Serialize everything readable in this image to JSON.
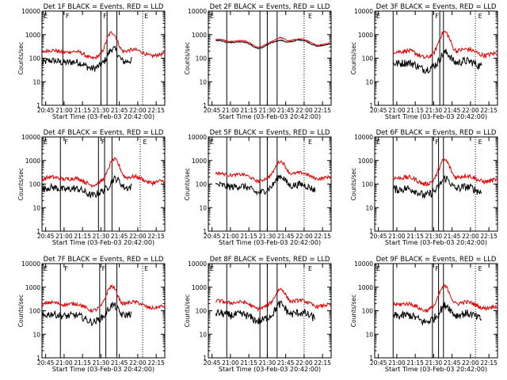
{
  "chart_data": {
    "type": "line",
    "layout": "3x3 grid",
    "ylabel": "Counts/sec",
    "xlabel": "Start Time (03-Feb-03 20:42:00)",
    "x_tick_labels": [
      "20:45",
      "21:00",
      "21:15",
      "21:30",
      "21:45",
      "22:00",
      "22:15"
    ],
    "y_tick_labels": [
      "1",
      "10",
      "100",
      "1000",
      "10000"
    ],
    "ylim": [
      1,
      10000
    ],
    "xlim_minutes_after_2042": [
      0,
      100
    ],
    "series_names": {
      "black": "Events",
      "red": "LLD"
    },
    "colors": {
      "black": "#000000",
      "red": "#e00000"
    },
    "panels": [
      {
        "title": "Det 1F BLACK = Events, RED = LLD",
        "gap_end": 13,
        "vlines": [
          17,
          48,
          53,
          61
        ],
        "dotted": [
          82
        ],
        "flags": [
          {
            "t": 0,
            "label": "E"
          },
          {
            "t": 18,
            "label": "F"
          },
          {
            "t": 48.5,
            "label": "F"
          },
          {
            "t": 82,
            "label": "E"
          }
        ],
        "red": {
          "base": 165,
          "flare": 7,
          "peak_t": 57,
          "wiggle": 0.18,
          "start": 0
        },
        "black": {
          "base": 60,
          "flare": 4,
          "peak_t": 58,
          "wiggle": 0.35,
          "start": 0,
          "tstart": 0,
          "tend": 73
        }
      },
      {
        "title": "Det 2F BLACK = Events, RED = LLD",
        "gap_end": 0,
        "vlines": [
          15,
          42,
          48,
          56
        ],
        "dotted": [
          78
        ],
        "flags": [
          {
            "t": 0,
            "label": "E"
          },
          {
            "t": 80,
            "label": "E"
          }
        ],
        "red": {
          "base": 480,
          "flare": 1.5,
          "peak_t": 59,
          "wiggle": 0.05,
          "start": 6
        },
        "black": {
          "base": 430,
          "flare": 1.3,
          "peak_t": 59,
          "wiggle": 0.05,
          "start": 6,
          "tstart": 6,
          "tend": 100
        }
      },
      {
        "title": "Det 3F BLACK = Events, RED = LLD",
        "gap_end": 0,
        "vlines": [
          15,
          47,
          53,
          56
        ],
        "dotted": [
          82
        ],
        "flags": [
          {
            "t": 0,
            "label": "E"
          },
          {
            "t": 48,
            "label": "F"
          },
          {
            "t": 83,
            "label": "E"
          }
        ],
        "red": {
          "base": 175,
          "flare": 7,
          "peak_t": 57,
          "wiggle": 0.22,
          "start": 15
        },
        "black": {
          "base": 55,
          "flare": 3,
          "peak_t": 58,
          "wiggle": 0.4,
          "start": 15,
          "tstart": 15,
          "tend": 87
        }
      },
      {
        "title": "Det 4F BLACK = Events, RED = LLD",
        "gap_end": 0,
        "vlines": [
          15,
          46,
          51,
          57
        ],
        "dotted": [
          80
        ],
        "flags": [
          {
            "t": 0,
            "label": "E"
          },
          {
            "t": 17,
            "label": "F"
          },
          {
            "t": 47,
            "label": "F"
          },
          {
            "t": 81,
            "label": "E"
          }
        ],
        "red": {
          "base": 150,
          "flare": 7,
          "peak_t": 59,
          "wiggle": 0.2,
          "start": 0
        },
        "black": {
          "base": 55,
          "flare": 3,
          "peak_t": 60,
          "wiggle": 0.35,
          "start": 0,
          "tstart": 0,
          "tend": 73
        }
      },
      {
        "title": "Det 5F BLACK = Events, RED = LLD",
        "gap_end": 0,
        "vlines": [
          15,
          42,
          48,
          56
        ],
        "dotted": [
          78
        ],
        "flags": [
          {
            "t": 0,
            "label": "E"
          },
          {
            "t": 80,
            "label": "E"
          }
        ],
        "red": {
          "base": 220,
          "flare": 4,
          "peak_t": 59,
          "wiggle": 0.15,
          "start": 6
        },
        "black": {
          "base": 70,
          "flare": 3,
          "peak_t": 59,
          "wiggle": 0.35,
          "start": 6,
          "tstart": 6,
          "tend": 87
        }
      },
      {
        "title": "Det 6F BLACK = Events, RED = LLD",
        "gap_end": 0,
        "vlines": [
          15,
          47,
          52,
          56
        ],
        "dotted": [
          82
        ],
        "flags": [
          {
            "t": 0,
            "label": "E"
          },
          {
            "t": 48,
            "label": "F"
          },
          {
            "t": 83,
            "label": "E"
          }
        ],
        "red": {
          "base": 165,
          "flare": 6,
          "peak_t": 57,
          "wiggle": 0.22,
          "start": 15
        },
        "black": {
          "base": 55,
          "flare": 3,
          "peak_t": 58,
          "wiggle": 0.4,
          "start": 15,
          "tstart": 15,
          "tend": 87
        }
      },
      {
        "title": "Det 7F BLACK = Events, RED = LLD",
        "gap_end": 0,
        "vlines": [
          15,
          47,
          52,
          61
        ],
        "dotted": [
          82
        ],
        "flags": [
          {
            "t": 0,
            "label": "E"
          },
          {
            "t": 17,
            "label": "F"
          },
          {
            "t": 47.5,
            "label": "F"
          },
          {
            "t": 82,
            "label": "E"
          }
        ],
        "red": {
          "base": 170,
          "flare": 6,
          "peak_t": 57,
          "wiggle": 0.18,
          "start": 0
        },
        "black": {
          "base": 55,
          "flare": 3,
          "peak_t": 58,
          "wiggle": 0.35,
          "start": 0,
          "tstart": 0,
          "tend": 73
        }
      },
      {
        "title": "Det 8F BLACK = Events, RED = LLD",
        "gap_end": 0,
        "vlines": [
          15,
          42,
          48,
          56
        ],
        "dotted": [
          78
        ],
        "flags": [
          {
            "t": 0,
            "label": "E"
          },
          {
            "t": 80,
            "label": "E"
          }
        ],
        "red": {
          "base": 200,
          "flare": 4,
          "peak_t": 59,
          "wiggle": 0.18,
          "start": 6
        },
        "black": {
          "base": 60,
          "flare": 3,
          "peak_t": 59,
          "wiggle": 0.4,
          "start": 6,
          "tstart": 6,
          "tend": 87
        }
      },
      {
        "title": "Det 9F BLACK = Events, RED = LLD",
        "gap_end": 0,
        "vlines": [
          15,
          47,
          52,
          56
        ],
        "dotted": [
          82
        ],
        "flags": [
          {
            "t": 0,
            "label": "E"
          },
          {
            "t": 48,
            "label": "F"
          },
          {
            "t": 83,
            "label": "E"
          }
        ],
        "red": {
          "base": 170,
          "flare": 6,
          "peak_t": 57,
          "wiggle": 0.2,
          "start": 15
        },
        "black": {
          "base": 55,
          "flare": 3,
          "peak_t": 58,
          "wiggle": 0.4,
          "start": 15,
          "tstart": 15,
          "tend": 87
        }
      }
    ]
  }
}
